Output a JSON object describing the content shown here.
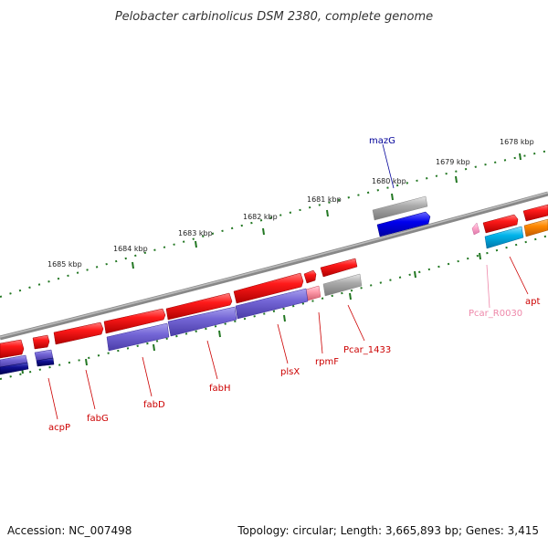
{
  "title": "Pelobacter carbinolicus DSM 2380, complete genome",
  "footer": {
    "accession": "Accession: NC_007498",
    "summary": "Topology: circular; Length: 3,665,893 bp; Genes: 3,415"
  },
  "kbp_labels": [
    "1678 kbp",
    "1679 kbp",
    "1680 kbp",
    "1681 kbp",
    "1682 kbp",
    "1683 kbp",
    "1684 kbp",
    "1685 kbp"
  ],
  "genes": [
    {
      "name": "mazG",
      "color": "#000099"
    },
    {
      "name": "Pcar_R0030",
      "color": "#ee88aa"
    },
    {
      "name": "apt",
      "color": "#cc0000"
    },
    {
      "name": "Pcar_1433",
      "color": "#cc0000"
    },
    {
      "name": "rpmF",
      "color": "#cc0000"
    },
    {
      "name": "plsX",
      "color": "#cc0000"
    },
    {
      "name": "fabH",
      "color": "#cc0000"
    },
    {
      "name": "fabD",
      "color": "#cc0000"
    },
    {
      "name": "fabG",
      "color": "#cc0000"
    },
    {
      "name": "acpP",
      "color": "#cc0000"
    }
  ],
  "colors": {
    "gene_fwd": "#ff0000",
    "gene_other": "#6a5acd",
    "gene_blue": "#0000ee",
    "gene_cyan": "#00bbee",
    "gene_orange": "#ff8800",
    "pseudo_gray": "#aaaaaa",
    "rna_pink": "#ff99cc",
    "ticks": "#227722",
    "backbone": "#777777"
  }
}
